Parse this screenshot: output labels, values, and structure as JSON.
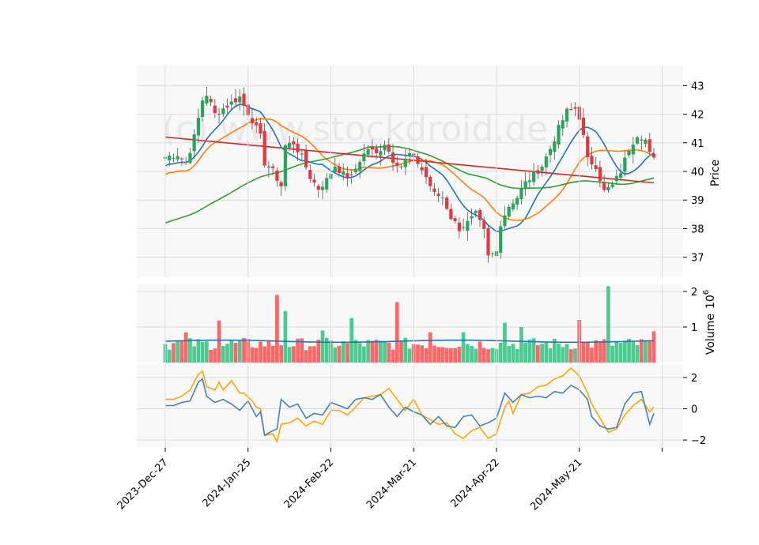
{
  "watermark": "(c) www.stockdroid.de",
  "chart_data": {
    "type": "candlestick",
    "x_tick_labels": [
      "2023-Dec-27",
      "2024-Jan-25",
      "2024-Feb-22",
      "2024-Mar-21",
      "2024-Apr-22",
      "2024-May-21"
    ],
    "x_tick_indices": [
      0,
      20,
      40,
      60,
      80,
      100
    ],
    "n_bars": 119,
    "price_panel": {
      "ylabel": "Price",
      "ylim": [
        36.3,
        43.7
      ],
      "yticks": [
        37,
        38,
        39,
        40,
        41,
        42,
        43
      ],
      "anchors": [
        [
          0,
          40.5
        ],
        [
          3,
          40.6
        ],
        [
          5,
          40.3
        ],
        [
          7,
          41.2
        ],
        [
          9,
          42.5
        ],
        [
          10,
          42.7
        ],
        [
          12,
          42.0
        ],
        [
          14,
          42.2
        ],
        [
          16,
          42.4
        ],
        [
          18,
          42.6
        ],
        [
          19,
          42.3
        ],
        [
          21,
          41.8
        ],
        [
          22,
          41.5
        ],
        [
          23,
          41.2
        ],
        [
          24,
          40.3
        ],
        [
          26,
          40.0
        ],
        [
          28,
          39.5
        ],
        [
          29,
          40.9
        ],
        [
          31,
          41.0
        ],
        [
          33,
          40.5
        ],
        [
          35,
          39.8
        ],
        [
          37,
          39.4
        ],
        [
          39,
          39.7
        ],
        [
          41,
          40.2
        ],
        [
          43,
          39.9
        ],
        [
          45,
          39.8
        ],
        [
          47,
          40.4
        ],
        [
          49,
          40.8
        ],
        [
          51,
          40.6
        ],
        [
          53,
          41.0
        ],
        [
          55,
          40.4
        ],
        [
          57,
          40.2
        ],
        [
          59,
          40.6
        ],
        [
          61,
          40.3
        ],
        [
          63,
          39.8
        ],
        [
          65,
          39.2
        ],
        [
          67,
          39.1
        ],
        [
          69,
          38.4
        ],
        [
          71,
          38.0
        ],
        [
          73,
          38.2
        ],
        [
          75,
          38.5
        ],
        [
          77,
          37.9
        ],
        [
          78,
          37.0
        ],
        [
          80,
          37.2
        ],
        [
          81,
          38.2
        ],
        [
          83,
          38.8
        ],
        [
          85,
          39.1
        ],
        [
          87,
          39.6
        ],
        [
          89,
          39.9
        ],
        [
          91,
          40.2
        ],
        [
          93,
          40.8
        ],
        [
          95,
          41.5
        ],
        [
          97,
          42.1
        ],
        [
          99,
          42.2
        ],
        [
          100,
          41.9
        ],
        [
          101,
          41.2
        ],
        [
          102,
          40.4
        ],
        [
          104,
          40.2
        ],
        [
          106,
          39.3
        ],
        [
          108,
          39.5
        ],
        [
          110,
          40.0
        ],
        [
          112,
          40.8
        ],
        [
          114,
          41.3
        ],
        [
          116,
          41.1
        ],
        [
          117,
          40.6
        ],
        [
          118,
          40.4
        ]
      ],
      "ma_lines": [
        {
          "color": "#1f77b4",
          "period": 10
        },
        {
          "color": "#ff7f0e",
          "period": 20
        },
        {
          "color": "#2ca02c",
          "period": 50
        },
        {
          "color": "#d62728",
          "period": 200
        }
      ],
      "ma200_start": 41.2,
      "ma200_end": 39.6,
      "ma50_start": 38.2
    },
    "volume_panel": {
      "ylabel": "Volume",
      "ylabel_scale": "10",
      "ylabel_exponent": "6",
      "ylim": [
        0,
        2.2
      ],
      "yticks": [
        1,
        2
      ],
      "spikes": [
        [
          5,
          0.85
        ],
        [
          13,
          1.18
        ],
        [
          27,
          1.9
        ],
        [
          29,
          1.45
        ],
        [
          38,
          0.9
        ],
        [
          45,
          1.25
        ],
        [
          56,
          1.7
        ],
        [
          64,
          0.85
        ],
        [
          72,
          0.85
        ],
        [
          82,
          1.12
        ],
        [
          86,
          1.0
        ],
        [
          100,
          1.2
        ],
        [
          107,
          2.15
        ],
        [
          118,
          0.88
        ]
      ],
      "ma_color": "#1f77b4",
      "ma_level": 0.6
    },
    "oscillator_panel": {
      "ylim": [
        -2.5,
        2.8
      ],
      "yticks": [
        -2,
        0,
        2
      ],
      "series": [
        {
          "color": "#ffa500",
          "anchors": [
            [
              0,
              0.6
            ],
            [
              2,
              0.6
            ],
            [
              4,
              0.8
            ],
            [
              6,
              1.2
            ],
            [
              8,
              2.2
            ],
            [
              9,
              2.4
            ],
            [
              10,
              1.4
            ],
            [
              12,
              1.2
            ],
            [
              13,
              1.7
            ],
            [
              14,
              1.2
            ],
            [
              16,
              1.8
            ],
            [
              18,
              1.0
            ],
            [
              19,
              1.0
            ],
            [
              21,
              0.5
            ],
            [
              22,
              0.1
            ],
            [
              23,
              0.0
            ],
            [
              24,
              -1.7
            ],
            [
              26,
              -1.6
            ],
            [
              27,
              -2.1
            ],
            [
              28,
              -1.0
            ],
            [
              30,
              -0.9
            ],
            [
              32,
              -0.6
            ],
            [
              34,
              -1.1
            ],
            [
              36,
              -0.8
            ],
            [
              38,
              -1.0
            ],
            [
              40,
              -0.1
            ],
            [
              42,
              -0.1
            ],
            [
              44,
              -0.4
            ],
            [
              46,
              0.1
            ],
            [
              48,
              0.7
            ],
            [
              50,
              0.8
            ],
            [
              52,
              0.9
            ],
            [
              54,
              1.3
            ],
            [
              56,
              0.6
            ],
            [
              58,
              -0.1
            ],
            [
              60,
              0.6
            ],
            [
              62,
              -0.4
            ],
            [
              64,
              -0.7
            ],
            [
              66,
              -1.0
            ],
            [
              68,
              -0.9
            ],
            [
              70,
              -1.6
            ],
            [
              72,
              -1.9
            ],
            [
              74,
              -1.4
            ],
            [
              76,
              -1.2
            ],
            [
              78,
              -1.9
            ],
            [
              80,
              -1.6
            ],
            [
              82,
              0.1
            ],
            [
              83,
              0.5
            ],
            [
              84,
              -0.3
            ],
            [
              86,
              0.9
            ],
            [
              88,
              1.0
            ],
            [
              90,
              1.4
            ],
            [
              92,
              1.5
            ],
            [
              94,
              1.9
            ],
            [
              96,
              2.1
            ],
            [
              98,
              2.6
            ],
            [
              100,
              2.1
            ],
            [
              102,
              1.0
            ],
            [
              103,
              0.3
            ],
            [
              105,
              -0.6
            ],
            [
              107,
              -1.5
            ],
            [
              109,
              -1.3
            ],
            [
              111,
              -0.4
            ],
            [
              113,
              0.2
            ],
            [
              115,
              0.6
            ],
            [
              117,
              -0.2
            ],
            [
              118,
              0.1
            ]
          ]
        },
        {
          "color": "#4682b4",
          "anchors": [
            [
              0,
              0.2
            ],
            [
              2,
              0.2
            ],
            [
              4,
              0.4
            ],
            [
              6,
              0.5
            ],
            [
              8,
              1.7
            ],
            [
              9,
              1.9
            ],
            [
              10,
              0.8
            ],
            [
              12,
              0.4
            ],
            [
              14,
              0.6
            ],
            [
              16,
              0.3
            ],
            [
              18,
              -0.1
            ],
            [
              20,
              0.5
            ],
            [
              22,
              -0.5
            ],
            [
              23,
              -0.2
            ],
            [
              24,
              -1.7
            ],
            [
              26,
              -1.4
            ],
            [
              27,
              -1.3
            ],
            [
              28,
              0.6
            ],
            [
              30,
              0.1
            ],
            [
              32,
              0.3
            ],
            [
              34,
              -0.6
            ],
            [
              36,
              -0.3
            ],
            [
              38,
              -0.4
            ],
            [
              40,
              0.4
            ],
            [
              42,
              0.2
            ],
            [
              44,
              0.0
            ],
            [
              46,
              0.6
            ],
            [
              48,
              0.7
            ],
            [
              50,
              0.6
            ],
            [
              52,
              0.9
            ],
            [
              54,
              0.1
            ],
            [
              56,
              -0.5
            ],
            [
              58,
              0.1
            ],
            [
              60,
              -0.2
            ],
            [
              62,
              -0.4
            ],
            [
              64,
              -1.0
            ],
            [
              66,
              -0.5
            ],
            [
              68,
              -1.1
            ],
            [
              70,
              -1.2
            ],
            [
              72,
              -0.5
            ],
            [
              74,
              -0.4
            ],
            [
              76,
              -1.1
            ],
            [
              78,
              -0.9
            ],
            [
              80,
              -0.6
            ],
            [
              82,
              1.0
            ],
            [
              84,
              0.4
            ],
            [
              86,
              0.9
            ],
            [
              88,
              0.7
            ],
            [
              90,
              0.8
            ],
            [
              92,
              0.7
            ],
            [
              94,
              1.1
            ],
            [
              96,
              1.0
            ],
            [
              98,
              1.5
            ],
            [
              100,
              1.2
            ],
            [
              102,
              0.6
            ],
            [
              103,
              -0.5
            ],
            [
              105,
              -1.1
            ],
            [
              107,
              -1.3
            ],
            [
              109,
              -1.2
            ],
            [
              111,
              0.3
            ],
            [
              113,
              1.0
            ],
            [
              115,
              1.1
            ],
            [
              117,
              -1.0
            ],
            [
              118,
              -0.3
            ]
          ]
        }
      ]
    },
    "colors": {
      "up": "#26a65b",
      "down": "#e8363d",
      "volume_up": "#2ec27e",
      "volume_down": "#ff4d4d"
    }
  }
}
